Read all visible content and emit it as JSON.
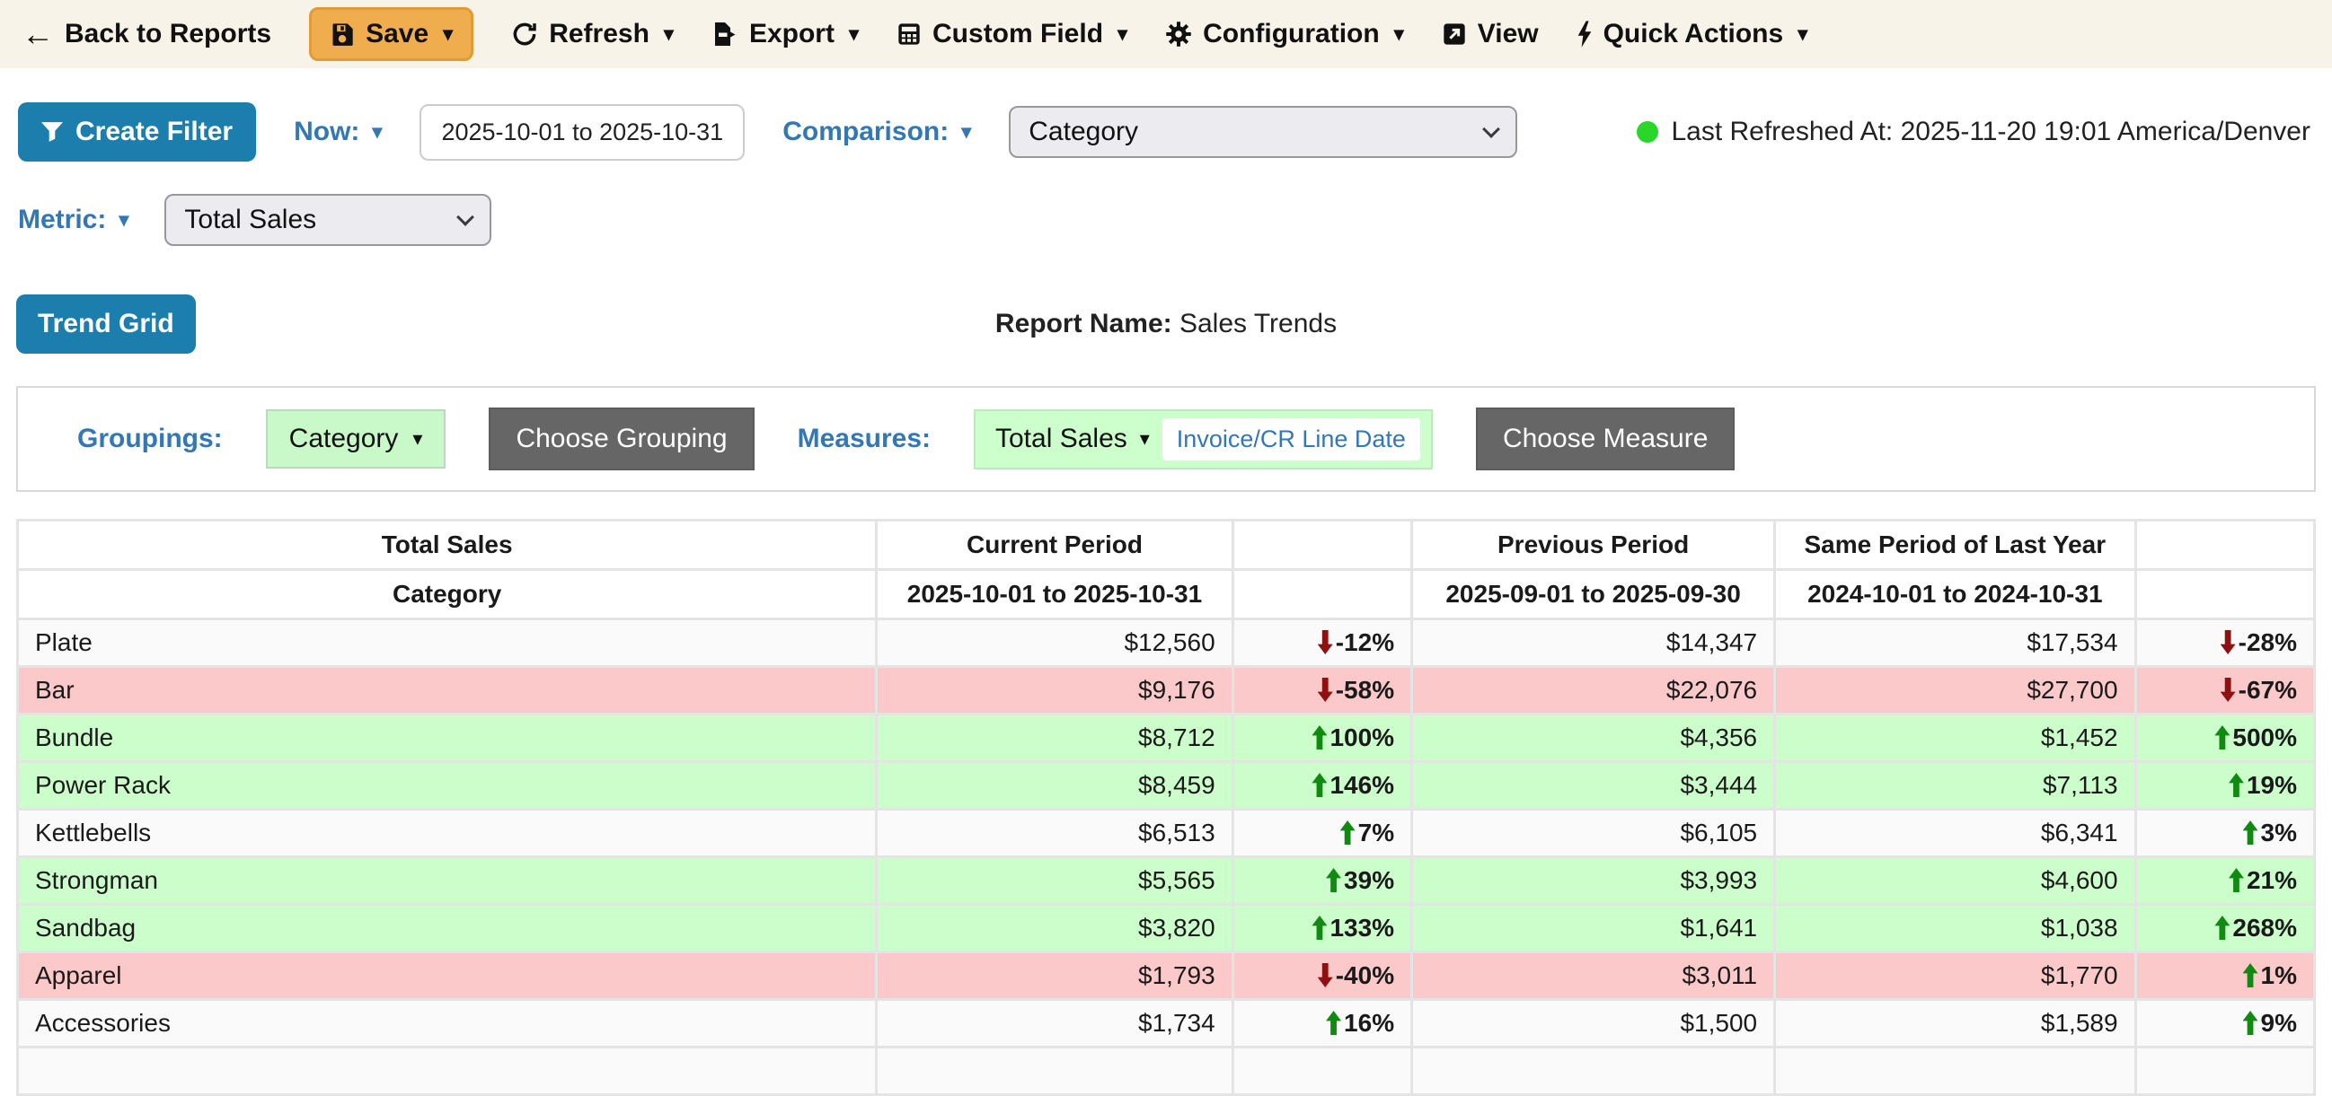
{
  "toolbar": {
    "back_label": "Back to Reports",
    "save_label": "Save",
    "refresh_label": "Refresh",
    "export_label": "Export",
    "custom_field_label": "Custom Field",
    "configuration_label": "Configuration",
    "view_label": "View",
    "quick_actions_label": "Quick Actions"
  },
  "filters": {
    "create_filter_label": "Create Filter",
    "now_label": "Now:",
    "date_range": "2025-10-01 to 2025-10-31",
    "comparison_label": "Comparison:",
    "comparison_value": "Category",
    "last_refreshed": "Last Refreshed At: 2025-11-20 19:01 America/Denver",
    "metric_label": "Metric:",
    "metric_value": "Total Sales"
  },
  "report": {
    "trend_grid_label": "Trend Grid",
    "name_label": "Report Name:",
    "name_value": "Sales Trends"
  },
  "config_bar": {
    "groupings_label": "Groupings:",
    "grouping_value": "Category",
    "choose_grouping_label": "Choose Grouping",
    "measures_label": "Measures:",
    "measure_value": "Total Sales",
    "measure_date_field": "Invoice/CR Line Date",
    "choose_measure_label": "Choose Measure"
  },
  "table": {
    "header_row1": [
      "Total Sales",
      "Current Period",
      "",
      "Previous Period",
      "Same Period of Last Year",
      ""
    ],
    "header_row2": [
      "Category",
      "2025-10-01 to 2025-10-31",
      "",
      "2025-09-01 to 2025-09-30",
      "2024-10-01 to 2024-10-31",
      ""
    ],
    "rows": [
      {
        "category": "Plate",
        "current": "$12,560",
        "change1": "-12%",
        "dir1": "down",
        "previous": "$14,347",
        "last_year": "$17,534",
        "change2": "-28%",
        "dir2": "down",
        "tone": "neutral"
      },
      {
        "category": "Bar",
        "current": "$9,176",
        "change1": "-58%",
        "dir1": "down",
        "previous": "$22,076",
        "last_year": "$27,700",
        "change2": "-67%",
        "dir2": "down",
        "tone": "bad"
      },
      {
        "category": "Bundle",
        "current": "$8,712",
        "change1": "100%",
        "dir1": "up",
        "previous": "$4,356",
        "last_year": "$1,452",
        "change2": "500%",
        "dir2": "up",
        "tone": "good"
      },
      {
        "category": "Power Rack",
        "current": "$8,459",
        "change1": "146%",
        "dir1": "up",
        "previous": "$3,444",
        "last_year": "$7,113",
        "change2": "19%",
        "dir2": "up",
        "tone": "good"
      },
      {
        "category": "Kettlebells",
        "current": "$6,513",
        "change1": "7%",
        "dir1": "up",
        "previous": "$6,105",
        "last_year": "$6,341",
        "change2": "3%",
        "dir2": "up",
        "tone": "neutral"
      },
      {
        "category": "Strongman",
        "current": "$5,565",
        "change1": "39%",
        "dir1": "up",
        "previous": "$3,993",
        "last_year": "$4,600",
        "change2": "21%",
        "dir2": "up",
        "tone": "good"
      },
      {
        "category": "Sandbag",
        "current": "$3,820",
        "change1": "133%",
        "dir1": "up",
        "previous": "$1,641",
        "last_year": "$1,038",
        "change2": "268%",
        "dir2": "up",
        "tone": "good"
      },
      {
        "category": "Apparel",
        "current": "$1,793",
        "change1": "-40%",
        "dir1": "down",
        "previous": "$3,011",
        "last_year": "$1,770",
        "change2": "1%",
        "dir2": "up",
        "tone": "bad"
      },
      {
        "category": "Accessories",
        "current": "$1,734",
        "change1": "16%",
        "dir1": "up",
        "previous": "$1,500",
        "last_year": "$1,589",
        "change2": "9%",
        "dir2": "up",
        "tone": "neutral"
      }
    ]
  },
  "icons": {
    "back": "arrow-left",
    "save": "floppy-disk",
    "refresh": "circular-arrow",
    "export": "file-export",
    "custom_field": "grid-box",
    "configuration": "gear",
    "view": "external-link",
    "quick_actions": "lightning-bolt",
    "create_filter": "funnel",
    "status": "green-dot",
    "dropdowns": "caret-down"
  },
  "colors": {
    "toolbar_bg": "#f7f3e8",
    "save_orange": "#f0ad4e",
    "accent_blue": "#1b7eac",
    "link_blue": "#3377b5",
    "good_row_bg": "#ccfecc",
    "bad_row_bg": "#fbc9c9",
    "neutral_row_bg": "#fafafa",
    "up_arrow_green": "#118a11",
    "down_arrow_red": "#8f1010",
    "dark_button": "#666666",
    "status_green": "#2ad62a"
  }
}
